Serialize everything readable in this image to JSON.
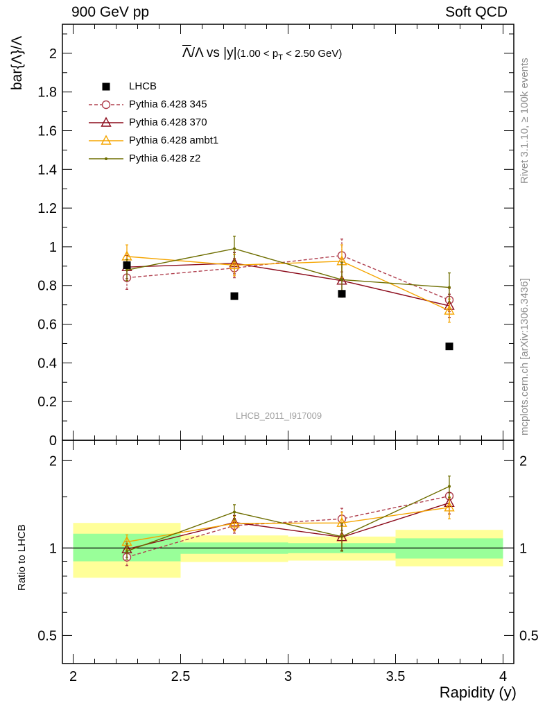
{
  "header": {
    "left": "900 GeV pp",
    "right": "Soft QCD"
  },
  "side_text": {
    "rivet": "Rivet 3.1.10, ≥ 100k events",
    "mcplots": "mcplots.cern.ch [arXiv:1306.3436]"
  },
  "title": {
    "lambda_bar": "Λ",
    "main": "/Λ vs |y|",
    "range_pre": "(1.00 < p",
    "range_sub": "T",
    "range_post": " < 2.50 GeV)"
  },
  "watermark": "LHCB_2011_I917009",
  "legend": [
    {
      "label": "LHCB",
      "color": "#000000",
      "marker": "square",
      "dash": false
    },
    {
      "label": "Pythia 6.428 345",
      "color": "#b0404f",
      "marker": "circle",
      "dash": true
    },
    {
      "label": "Pythia 6.428 370",
      "color": "#8b0a1a",
      "marker": "triangle",
      "dash": false
    },
    {
      "label": "Pythia 6.428 ambt1",
      "color": "#f5a500",
      "marker": "triangle",
      "dash": false
    },
    {
      "label": "Pythia 6.428 z2",
      "color": "#6e6e00",
      "marker": "dot",
      "dash": false
    }
  ],
  "chart_data": {
    "type": "scatter",
    "x": [
      2.25,
      2.75,
      3.25,
      3.75
    ],
    "xbins": [
      [
        2.0,
        2.5
      ],
      [
        2.5,
        3.0
      ],
      [
        3.0,
        3.5
      ],
      [
        3.5,
        4.0
      ]
    ],
    "xlabel": "Rapidity (y)",
    "xlim": [
      1.95,
      4.05
    ],
    "xticks": [
      2,
      2.5,
      3,
      3.5,
      4
    ],
    "top": {
      "ylabel": "bar{Λ}/Λ",
      "ylim": [
        0,
        2.15
      ],
      "yticks": [
        0,
        0.2,
        0.4,
        0.6,
        0.8,
        1,
        1.2,
        1.4,
        1.6,
        1.8,
        2
      ],
      "series": [
        {
          "name": "LHCB",
          "values": [
            0.905,
            0.745,
            0.757,
            0.485
          ],
          "errors": [
            0,
            0,
            0,
            0
          ]
        },
        {
          "name": "Pythia 6.428 345",
          "values": [
            0.84,
            0.89,
            0.955,
            0.725
          ],
          "errors": [
            0.06,
            0.05,
            0.085,
            0.06
          ]
        },
        {
          "name": "Pythia 6.428 370",
          "values": [
            0.895,
            0.915,
            0.825,
            0.695
          ],
          "errors": [
            0.06,
            0.055,
            0.085,
            0.06
          ]
        },
        {
          "name": "Pythia 6.428 ambt1",
          "values": [
            0.95,
            0.905,
            0.925,
            0.67
          ],
          "errors": [
            0.06,
            0.055,
            0.085,
            0.06
          ]
        },
        {
          "name": "Pythia 6.428 z2",
          "values": [
            0.88,
            0.99,
            0.83,
            0.79
          ],
          "errors": [
            0.055,
            0.065,
            0.09,
            0.075
          ]
        }
      ]
    },
    "ratio": {
      "ylabel": "Ratio to LHCB",
      "scale": "log",
      "ylim": [
        0.4,
        2.35
      ],
      "yticks": [
        0.5,
        1,
        2
      ],
      "band_inner": [
        [
          0.9,
          1.12
        ],
        [
          0.955,
          1.045
        ],
        [
          0.96,
          1.04
        ],
        [
          0.92,
          1.08
        ]
      ],
      "band_outer": [
        [
          0.79,
          1.22
        ],
        [
          0.895,
          1.105
        ],
        [
          0.905,
          1.095
        ],
        [
          0.865,
          1.155
        ]
      ],
      "series": [
        {
          "name": "Pythia 6.428 345",
          "values": [
            0.93,
            1.195,
            1.26,
            1.51
          ],
          "errors": [
            0.06,
            0.07,
            0.11,
            0.12
          ]
        },
        {
          "name": "Pythia 6.428 370",
          "values": [
            0.99,
            1.225,
            1.09,
            1.43
          ],
          "errors": [
            0.06,
            0.07,
            0.11,
            0.12
          ]
        },
        {
          "name": "Pythia 6.428 ambt1",
          "values": [
            1.05,
            1.215,
            1.22,
            1.38
          ],
          "errors": [
            0.06,
            0.07,
            0.11,
            0.12
          ]
        },
        {
          "name": "Pythia 6.428 z2",
          "values": [
            0.975,
            1.33,
            1.095,
            1.63
          ],
          "errors": [
            0.06,
            0.08,
            0.12,
            0.14
          ]
        }
      ]
    }
  }
}
